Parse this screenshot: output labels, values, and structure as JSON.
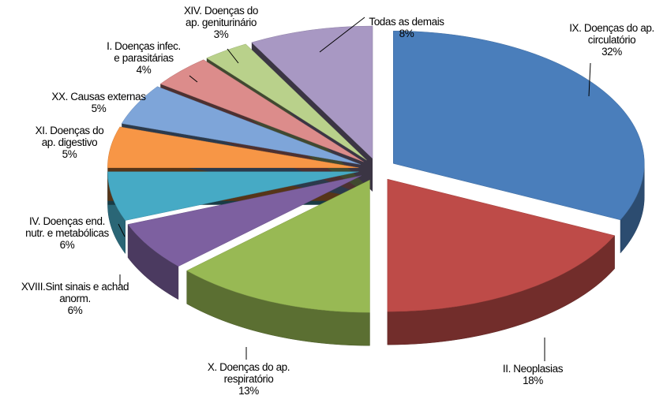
{
  "chart_data": {
    "type": "pie",
    "categories": [
      "IX.  Doenças do ap.\ncirculatório",
      "II.  Neoplasias",
      "X.  Doenças do ap.\nrespiratório",
      "XVIII.Sint sinais e achad\nanorm.",
      "IV.  Doenças end.\nnutr. e metabólicas",
      "XI.  Doenças do\nap. digestivo",
      "XX.  Causas externas",
      "I. Doenças infec.\ne parasitárias",
      "XIV. Doenças do\nap. geniturinário",
      "Todas as demais"
    ],
    "values": [
      32,
      18,
      13,
      6,
      6,
      5,
      5,
      4,
      3,
      8
    ],
    "value_labels": [
      "32%",
      "18%",
      "13%",
      "6%",
      "6%",
      "5%",
      "5%",
      "4%",
      "3%",
      "8%"
    ],
    "colors": [
      "#4a7ebb",
      "#be4b48",
      "#98b954",
      "#7d60a0",
      "#46aac5",
      "#f79646",
      "#7ea5d9",
      "#dc8c8b",
      "#b9d18b",
      "#a898c3"
    ]
  }
}
